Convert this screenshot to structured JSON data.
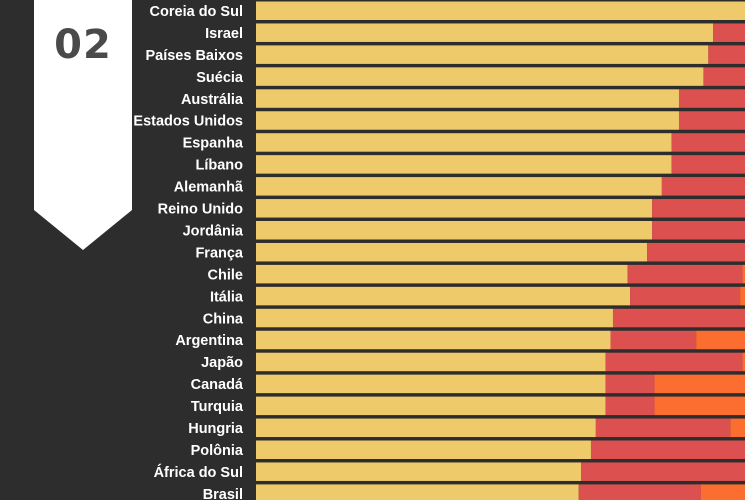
{
  "badge": {
    "number": "02"
  },
  "chart_data": {
    "type": "bar",
    "stacked": true,
    "orientation": "horizontal",
    "xlim": [
      0,
      100
    ],
    "colors": {
      "yellow": "#efca6a",
      "red": "#dc5150",
      "orange": "#fb6e30"
    },
    "categories": [
      "Coreia do Sul",
      "Israel",
      "Países Baixos",
      "Suécia",
      "Austrália",
      "Estados Unidos",
      "Espanha",
      "Líbano",
      "Alemanhã",
      "Reino Unido",
      "Jordânia",
      "França",
      "Chile",
      "Itália",
      "China",
      "Argentina",
      "Japão",
      "Canadá",
      "Turquia",
      "Hungria",
      "Polônia",
      "África do Sul",
      "Brasil"
    ],
    "series": [
      {
        "color": "yellow",
        "values": [
          100,
          93.5,
          92.5,
          91.5,
          86.5,
          86.5,
          85,
          85,
          83,
          81,
          81,
          80,
          76,
          76.5,
          73,
          72.5,
          71.5,
          71.5,
          71.5,
          69.5,
          68.5,
          66.5,
          66
        ]
      },
      {
        "color": "red",
        "values": [
          0,
          6.5,
          7.5,
          8.5,
          13.5,
          13.5,
          15,
          15,
          17,
          19,
          19,
          20,
          23.5,
          22.5,
          27,
          17.5,
          28,
          10,
          10,
          27.5,
          31.5,
          33.5,
          25
        ]
      },
      {
        "color": "orange",
        "values": [
          0,
          0,
          0,
          0,
          0,
          0,
          0,
          0,
          0,
          0,
          0,
          0,
          0.5,
          1,
          0,
          10,
          0.5,
          18.5,
          18.5,
          3,
          0,
          0,
          9
        ]
      }
    ]
  }
}
